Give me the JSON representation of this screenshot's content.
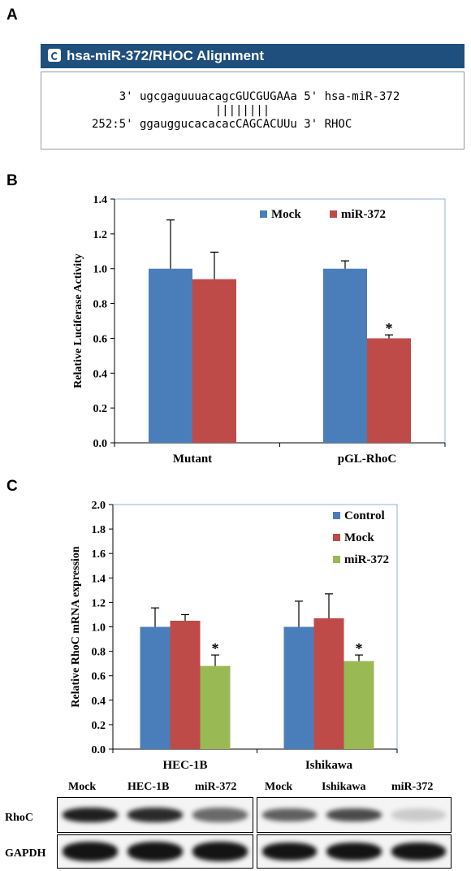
{
  "panels": {
    "a": "A",
    "b": "B",
    "c": "C"
  },
  "alignment": {
    "header": "hsa-miR-372/RHOC Alignment",
    "line1": "    3' ugcgaguuuacagcGUCGUGAAa 5' hsa-miR-372",
    "pairs": "                  ||||||||",
    "line2": "252:5' ggauggucacacacCAGCACUUu 3' RHOC",
    "icon": "info-icon"
  },
  "chart_data": [
    {
      "type": "bar",
      "categories": [
        "Mutant",
        "pGL-RhoC"
      ],
      "series": [
        {
          "name": "Mock",
          "values": [
            1.0,
            1.0
          ],
          "errors": [
            0.28,
            0.045
          ],
          "color": "#4a7ebb"
        },
        {
          "name": "miR-372",
          "values": [
            0.94,
            0.6
          ],
          "errors": [
            0.155,
            0.02
          ],
          "color": "#be4b48"
        }
      ],
      "annotations": [
        {
          "series": 1,
          "category": 1,
          "text": "*"
        }
      ],
      "ylabel": "Relative Luciferase Activity",
      "ylim": [
        0,
        1.4
      ],
      "yticks": [
        "0.0",
        "0.2",
        "0.4",
        "0.6",
        "0.8",
        "1.0",
        "1.2",
        "1.4"
      ],
      "legend": "top-right",
      "grid": false
    },
    {
      "type": "bar",
      "categories": [
        "HEC-1B",
        "Ishikawa"
      ],
      "series": [
        {
          "name": "Control",
          "values": [
            1.0,
            1.0
          ],
          "errors": [
            0.155,
            0.21
          ],
          "color": "#4a7ebb"
        },
        {
          "name": "Mock",
          "values": [
            1.05,
            1.07
          ],
          "errors": [
            0.05,
            0.2
          ],
          "color": "#be4b48"
        },
        {
          "name": "miR-372",
          "values": [
            0.68,
            0.72
          ],
          "errors": [
            0.09,
            0.05
          ],
          "color": "#98b954"
        }
      ],
      "annotations": [
        {
          "series": 2,
          "category": 0,
          "text": "*"
        },
        {
          "series": 2,
          "category": 1,
          "text": "*"
        }
      ],
      "ylabel": "Relative RhoC mRNA expression",
      "ylim": [
        0,
        2.0
      ],
      "yticks": [
        "0.0",
        "0.2",
        "0.4",
        "0.6",
        "0.8",
        "1.0",
        "1.2",
        "1.4",
        "1.6",
        "1.8",
        "2.0"
      ],
      "legend": "top-right",
      "grid": false
    }
  ],
  "blot": {
    "lanes": [
      "Mock",
      "HEC-1B",
      "miR-372",
      "Mock",
      "Ishikawa",
      "miR-372"
    ],
    "rows": [
      "RhoC",
      "GAPDH"
    ],
    "rhoc_intensity": [
      0.95,
      0.9,
      0.6,
      0.65,
      0.75,
      0.15
    ],
    "gapdh_intensity": [
      1.0,
      1.0,
      1.0,
      1.0,
      1.0,
      1.0
    ]
  }
}
